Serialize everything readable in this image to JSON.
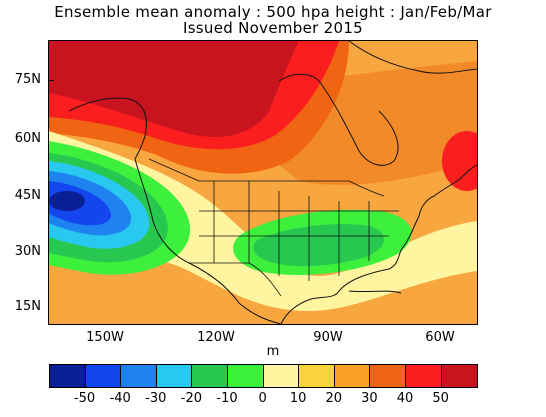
{
  "title": "Ensemble mean anomaly : 500 hpa height : Jan/Feb/Mar",
  "subtitle": "Issued November 2015",
  "lat_labels": [
    "75N",
    "60N",
    "45N",
    "30N",
    "15N"
  ],
  "lon_labels": [
    "150W",
    "120W",
    "90W",
    "60W"
  ],
  "unit": "m",
  "colorbar": {
    "colors": [
      "#0a1e96",
      "#1446f0",
      "#1e82f0",
      "#28c8f0",
      "#28c850",
      "#3cf03c",
      "#fff5a0",
      "#fad23c",
      "#faa028",
      "#f06414",
      "#fa1e1e",
      "#c8141e"
    ],
    "labels": [
      "-50",
      "-40",
      "-30",
      "-20",
      "-10",
      "0",
      "10",
      "20",
      "30",
      "40",
      "50"
    ]
  },
  "map": {
    "lat_range": [
      8,
      87
    ],
    "lon_range": [
      -168,
      -53
    ],
    "projection": "equirectangular"
  }
}
